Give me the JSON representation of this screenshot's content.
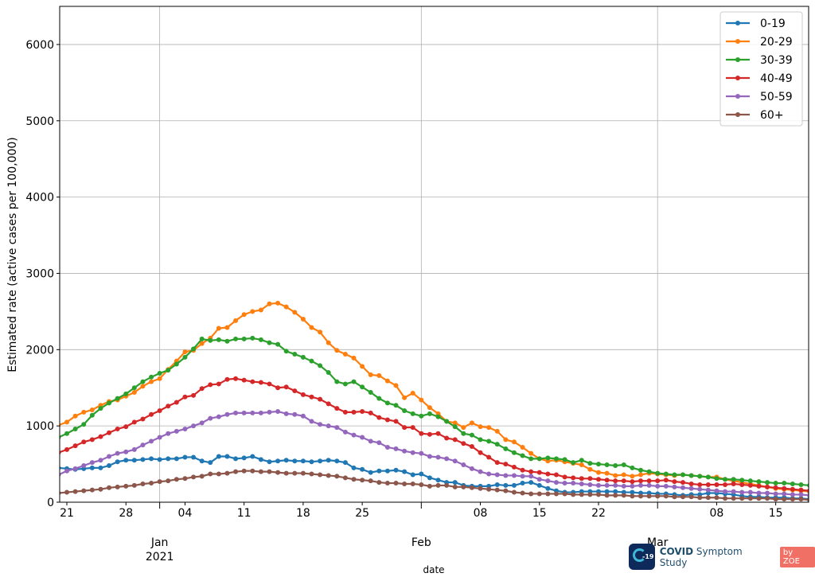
{
  "chart_data": {
    "type": "line",
    "title": "",
    "xlabel": "date",
    "ylabel": "Estimated rate (active cases per 100,000)",
    "start_date": "2020-12-20",
    "xlim": [
      "2020-12-20",
      "2021-03-19"
    ],
    "ylim": [
      0,
      6500
    ],
    "yticks": [
      0,
      1000,
      2000,
      3000,
      4000,
      5000,
      6000
    ],
    "ytick_labels": [
      "0",
      "1000",
      "2000",
      "3000",
      "4000",
      "5000",
      "6000"
    ],
    "minor_ticks": [
      {
        "date": "2020-12-21",
        "label": "21"
      },
      {
        "date": "2020-12-28",
        "label": "28"
      },
      {
        "date": "2021-01-04",
        "label": "04"
      },
      {
        "date": "2021-01-11",
        "label": "11"
      },
      {
        "date": "2021-01-18",
        "label": "18"
      },
      {
        "date": "2021-01-25",
        "label": "25"
      },
      {
        "date": "2021-02-08",
        "label": "08"
      },
      {
        "date": "2021-02-15",
        "label": "15"
      },
      {
        "date": "2021-02-22",
        "label": "22"
      },
      {
        "date": "2021-03-08",
        "label": "08"
      },
      {
        "date": "2021-03-15",
        "label": "15"
      }
    ],
    "major_ticks": [
      {
        "date": "2021-01-01",
        "label": "Jan",
        "sublabel": "2021"
      },
      {
        "date": "2021-02-01",
        "label": "Feb",
        "sublabel": ""
      },
      {
        "date": "2021-03-01",
        "label": "Mar",
        "sublabel": ""
      }
    ],
    "grid": true,
    "legend_position": "top-right",
    "series": [
      {
        "name": "0-19",
        "color": "#1f77b4",
        "values": [
          450,
          440,
          430,
          440,
          450,
          450,
          480,
          530,
          550,
          550,
          560,
          570,
          560,
          570,
          570,
          590,
          590,
          540,
          520,
          600,
          600,
          570,
          580,
          600,
          560,
          530,
          540,
          550,
          540,
          540,
          530,
          540,
          550,
          540,
          520,
          450,
          430,
          390,
          410,
          410,
          420,
          400,
          360,
          370,
          320,
          290,
          260,
          260,
          220,
          210,
          210,
          210,
          230,
          220,
          220,
          250,
          260,
          220,
          180,
          150,
          130,
          130,
          140,
          140,
          140,
          140,
          140,
          130,
          130,
          120,
          120,
          110,
          110,
          100,
          90,
          100,
          100,
          120,
          120,
          110,
          100,
          80,
          70,
          70,
          60,
          60,
          60,
          50,
          50,
          40
        ]
      },
      {
        "name": "20-29",
        "color": "#ff7f0e",
        "values": [
          1010,
          1050,
          1130,
          1180,
          1210,
          1270,
          1320,
          1340,
          1390,
          1440,
          1520,
          1580,
          1620,
          1740,
          1850,
          1970,
          1990,
          2080,
          2150,
          2280,
          2290,
          2380,
          2460,
          2500,
          2520,
          2600,
          2610,
          2560,
          2490,
          2400,
          2290,
          2230,
          2090,
          1990,
          1940,
          1890,
          1780,
          1670,
          1660,
          1590,
          1530,
          1370,
          1430,
          1340,
          1240,
          1160,
          1060,
          1040,
          980,
          1040,
          990,
          980,
          930,
          820,
          790,
          720,
          640,
          570,
          540,
          550,
          530,
          510,
          490,
          430,
          390,
          380,
          350,
          360,
          340,
          360,
          380,
          370,
          360,
          350,
          360,
          350,
          340,
          330,
          330,
          300,
          280,
          260,
          240,
          220,
          200,
          180,
          170,
          160,
          150,
          140
        ]
      },
      {
        "name": "30-39",
        "color": "#2ca02c",
        "values": [
          850,
          900,
          960,
          1020,
          1140,
          1230,
          1300,
          1360,
          1420,
          1500,
          1580,
          1640,
          1690,
          1730,
          1810,
          1900,
          2010,
          2140,
          2120,
          2130,
          2110,
          2140,
          2140,
          2150,
          2130,
          2090,
          2070,
          1980,
          1940,
          1900,
          1850,
          1790,
          1700,
          1580,
          1550,
          1580,
          1510,
          1440,
          1360,
          1300,
          1270,
          1200,
          1160,
          1130,
          1160,
          1120,
          1060,
          990,
          900,
          880,
          820,
          800,
          760,
          700,
          650,
          610,
          570,
          570,
          580,
          570,
          560,
          520,
          550,
          510,
          500,
          490,
          480,
          490,
          450,
          420,
          400,
          380,
          370,
          360,
          360,
          350,
          340,
          330,
          310,
          300,
          300,
          290,
          280,
          270,
          260,
          250,
          250,
          240,
          230,
          220
        ]
      },
      {
        "name": "40-49",
        "color": "#d62728",
        "values": [
          650,
          690,
          740,
          790,
          820,
          860,
          910,
          960,
          990,
          1050,
          1090,
          1150,
          1200,
          1260,
          1310,
          1380,
          1400,
          1490,
          1540,
          1550,
          1610,
          1620,
          1600,
          1580,
          1570,
          1550,
          1500,
          1510,
          1460,
          1410,
          1380,
          1350,
          1290,
          1230,
          1180,
          1180,
          1190,
          1170,
          1110,
          1080,
          1060,
          980,
          980,
          900,
          890,
          900,
          840,
          820,
          770,
          730,
          650,
          590,
          520,
          500,
          460,
          420,
          400,
          390,
          370,
          360,
          330,
          320,
          310,
          310,
          300,
          290,
          280,
          280,
          270,
          280,
          280,
          280,
          290,
          270,
          260,
          240,
          230,
          230,
          230,
          230,
          240,
          230,
          220,
          210,
          200,
          190,
          180,
          170,
          160,
          150
        ]
      },
      {
        "name": "50-59",
        "color": "#9467bd",
        "values": [
          360,
          410,
          440,
          480,
          520,
          550,
          600,
          640,
          660,
          690,
          750,
          800,
          850,
          900,
          930,
          960,
          1000,
          1040,
          1100,
          1120,
          1150,
          1170,
          1170,
          1170,
          1170,
          1180,
          1190,
          1160,
          1150,
          1130,
          1060,
          1020,
          1000,
          980,
          920,
          880,
          850,
          800,
          780,
          720,
          700,
          670,
          650,
          640,
          600,
          590,
          570,
          540,
          490,
          440,
          400,
          370,
          360,
          350,
          350,
          340,
          340,
          300,
          280,
          260,
          250,
          250,
          240,
          230,
          220,
          220,
          220,
          210,
          210,
          220,
          220,
          210,
          210,
          200,
          190,
          180,
          170,
          160,
          150,
          140,
          140,
          130,
          130,
          120,
          120,
          110,
          110,
          100,
          100,
          90
        ]
      },
      {
        "name": "60+",
        "color": "#8c564b",
        "values": [
          120,
          130,
          140,
          150,
          160,
          170,
          190,
          200,
          210,
          220,
          240,
          250,
          270,
          280,
          300,
          310,
          330,
          340,
          370,
          370,
          380,
          400,
          410,
          410,
          400,
          400,
          390,
          380,
          380,
          380,
          370,
          360,
          350,
          340,
          320,
          300,
          290,
          280,
          260,
          250,
          250,
          240,
          240,
          230,
          210,
          220,
          220,
          200,
          200,
          190,
          180,
          170,
          160,
          150,
          130,
          120,
          110,
          110,
          110,
          110,
          110,
          100,
          100,
          100,
          100,
          90,
          90,
          90,
          80,
          80,
          80,
          80,
          80,
          70,
          70,
          70,
          60,
          60,
          60,
          50,
          50,
          50,
          50,
          50,
          50,
          40,
          40,
          40,
          40,
          30
        ]
      }
    ]
  },
  "branding": {
    "icon_text": "-19",
    "name_bold": "COVID",
    "name_rest": " Symptom Study",
    "badge": "by ZOE"
  }
}
